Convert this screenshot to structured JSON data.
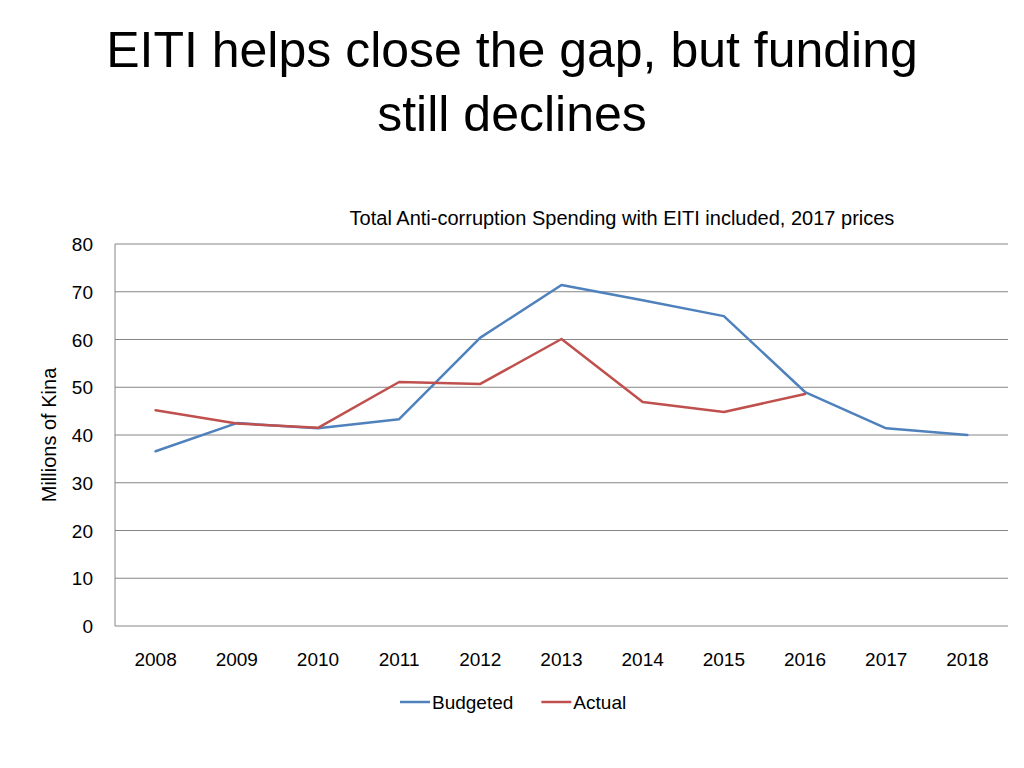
{
  "chart_data": {
    "type": "line",
    "title": "EITI helps close the gap, but funding still declines",
    "subtitle": "Total Anti-corruption Spending with EITI included, 2017 prices",
    "y_label": "Millions of Kina",
    "categories": [
      "2008",
      "2009",
      "2010",
      "2011",
      "2012",
      "2013",
      "2014",
      "2015",
      "2016",
      "2017",
      "2018"
    ],
    "series": [
      {
        "name": "Budgeted",
        "color": "#4f81bd",
        "values": [
          36.6,
          42.5,
          41.4,
          43.3,
          60.4,
          71.4,
          68.2,
          64.9,
          49.0,
          41.4,
          40.0
        ]
      },
      {
        "name": "Actual",
        "color": "#c0504d",
        "values": [
          45.2,
          42.4,
          41.5,
          51.1,
          50.7,
          60.1,
          46.9,
          44.8,
          48.6,
          null,
          null
        ]
      }
    ],
    "ylim": [
      0,
      80
    ],
    "yticks": [
      0,
      10,
      20,
      30,
      40,
      50,
      60,
      70,
      80
    ],
    "grid": true,
    "legend": "bottom"
  }
}
